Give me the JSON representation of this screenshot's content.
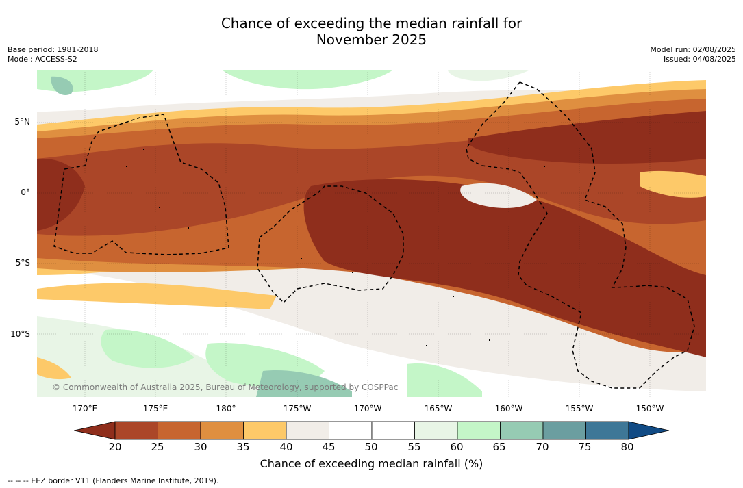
{
  "title": {
    "line1": "Chance of exceeding the median rainfall for",
    "line2": "November 2025"
  },
  "meta_left": {
    "base_period": "Base period: 1981-2018",
    "model": "Model: ACCESS-S2"
  },
  "meta_right": {
    "model_run": "Model run: 02/08/2025",
    "issued": "Issued: 04/08/2025"
  },
  "lat_labels": [
    "5°N",
    "0°",
    "5°S",
    "10°S"
  ],
  "lon_labels": [
    "170°E",
    "175°E",
    "180°",
    "175°W",
    "170°W",
    "165°W",
    "160°W",
    "155°W",
    "150°W"
  ],
  "colorbar": {
    "ticks": [
      "20",
      "25",
      "30",
      "35",
      "40",
      "45",
      "50",
      "55",
      "60",
      "65",
      "70",
      "75",
      "80"
    ],
    "colors": [
      "#8f2e1c",
      "#ab4628",
      "#c7652f",
      "#df8f40",
      "#fdc969",
      "#f1ede8",
      "#ffffff",
      "#ffffff",
      "#e8f5e6",
      "#c4f6c8",
      "#96cbb3",
      "#6b9ea0",
      "#3e7797",
      "#114b85"
    ],
    "label": "Chance of exceeding median rainfall (%)"
  },
  "copyright": "© Commonwealth of Australia 2025, Bureau of Meteorology, supported by COSPPac",
  "footer": "--  --  -- EEZ border V11 (Flanders Marine Institute, 2019)."
}
